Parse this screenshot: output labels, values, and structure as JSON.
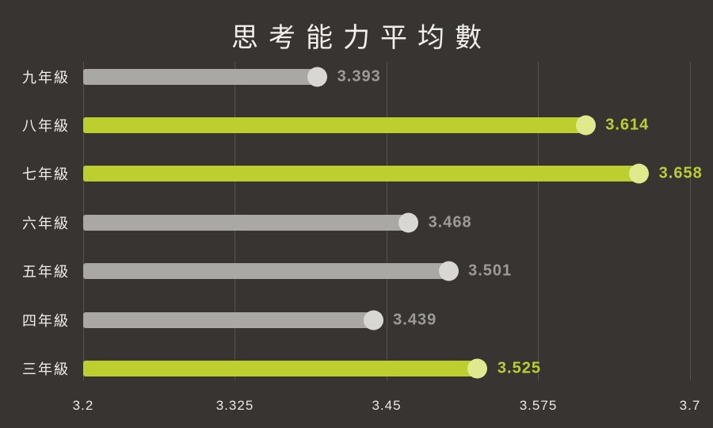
{
  "title": "思考能力平均數",
  "chart_data": {
    "type": "bar",
    "orientation": "horizontal",
    "title": "思考能力平均數",
    "categories": [
      "九年級",
      "八年級",
      "七年級",
      "六年級",
      "五年級",
      "四年級",
      "三年級"
    ],
    "values": [
      3.393,
      3.614,
      3.658,
      3.468,
      3.501,
      3.439,
      3.525
    ],
    "value_labels": [
      "3.393",
      "3.614",
      "3.658",
      "3.468",
      "3.501",
      "3.439",
      "3.525"
    ],
    "bar_palette": [
      "gray",
      "green",
      "green",
      "gray",
      "gray",
      "gray",
      "green"
    ],
    "xlabel": "",
    "ylabel": "",
    "xlim": [
      3.2,
      3.7
    ],
    "x_ticks": [
      "3.2",
      "3.325",
      "3.45",
      "3.575",
      "3.7"
    ],
    "x_tick_values": [
      3.2,
      3.325,
      3.45,
      3.575,
      3.7
    ],
    "grid": "vertical-only",
    "legend": "none"
  },
  "colors": {
    "background": "#373431",
    "gridline": "#55524d",
    "title_text": "#f2f0ec",
    "category_text": "#f0eeea",
    "tick_text": "#eae8e4",
    "green_bar": "#bccf2e",
    "green_tip": "#e0e98c",
    "green_value_text": "#bccf2e",
    "gray_bar": "#a9a8a5",
    "gray_tip": "#d8d7d4",
    "gray_value_text": "#9c9b98"
  }
}
